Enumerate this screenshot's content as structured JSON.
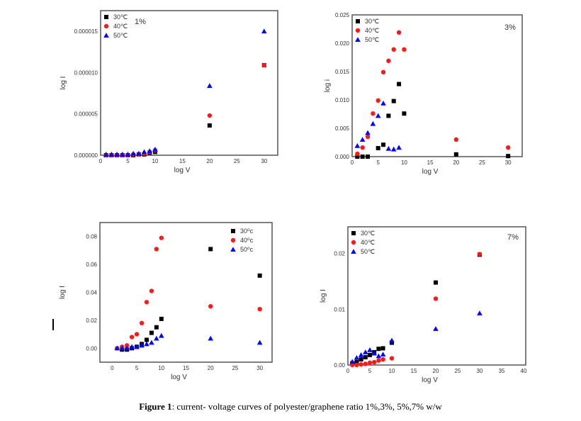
{
  "colors": {
    "30": "#000000",
    "40": "#ff1a1a",
    "50": "#0000ff"
  },
  "chart_data": [
    {
      "type": "scatter",
      "title": "1%",
      "xlabel": "log V",
      "ylabel": "log I",
      "xlim": [
        0,
        32.5
      ],
      "ylim": [
        0,
        1.75e-05
      ],
      "xticks": [
        "0",
        "5",
        "10",
        "15",
        "20",
        "25",
        "30"
      ],
      "xtick_values": [
        0,
        5,
        10,
        15,
        20,
        25,
        30
      ],
      "yticks": [
        "0.000000",
        "0.000005",
        "0.000010",
        "0.000015"
      ],
      "ytick_values": [
        0,
        5e-06,
        1e-05,
        1.5e-05
      ],
      "legend": "top-left",
      "series": [
        {
          "name": "30℃",
          "marker": "square",
          "x": [
            1,
            2,
            3,
            4,
            5,
            6,
            7,
            8,
            9,
            10,
            20,
            30
          ],
          "y": [
            0,
            0,
            0,
            0,
            0,
            0,
            1e-07,
            1e-07,
            3e-07,
            4e-07,
            3.6e-06,
            1.09e-05
          ]
        },
        {
          "name": "40℃",
          "marker": "circle",
          "x": [
            1,
            2,
            3,
            4,
            5,
            6,
            7,
            8,
            9,
            10,
            20,
            30
          ],
          "y": [
            0,
            0,
            0,
            0,
            0,
            1e-07,
            1e-07,
            2e-07,
            4e-07,
            6e-07,
            4.8e-06,
            1.09e-05
          ]
        },
        {
          "name": "50℃",
          "marker": "triangle",
          "x": [
            1,
            2,
            3,
            4,
            5,
            6,
            7,
            8,
            9,
            10,
            20,
            30
          ],
          "y": [
            1e-07,
            1e-07,
            1e-07,
            1e-07,
            1e-07,
            2e-07,
            2e-07,
            4e-07,
            5e-07,
            7e-07,
            8.4e-06,
            1.5e-05
          ]
        }
      ]
    },
    {
      "type": "scatter",
      "title": "3%",
      "xlabel": "log V",
      "ylabel": "log i",
      "xlim": [
        0,
        32.7
      ],
      "ylim": [
        0,
        0.025
      ],
      "xticks": [
        "0",
        "5",
        "10",
        "15",
        "20",
        "25",
        "30"
      ],
      "xtick_values": [
        0,
        5,
        10,
        15,
        20,
        25,
        30
      ],
      "yticks": [
        "0.000",
        "0.005",
        "0.010",
        "0.015",
        "0.020",
        "0.025"
      ],
      "ytick_values": [
        0,
        0.005,
        0.01,
        0.015,
        0.02,
        0.025
      ],
      "legend": "top-left",
      "series": [
        {
          "name": "30℃",
          "marker": "square",
          "x": [
            1,
            2,
            3,
            5,
            6,
            7,
            8,
            9,
            10,
            20,
            30
          ],
          "y": [
            0,
            0,
            0,
            0.0015,
            0.0021,
            0.0072,
            0.0098,
            0.0128,
            0.0076,
            0.0004,
            0.0001
          ]
        },
        {
          "name": "40℃",
          "marker": "circle",
          "x": [
            1,
            2,
            3,
            4,
            5,
            6,
            7,
            8,
            9,
            10,
            20,
            30
          ],
          "y": [
            0.0005,
            0.0016,
            0.0035,
            0.0076,
            0.0099,
            0.0149,
            0.0169,
            0.0189,
            0.0219,
            0.0189,
            0.003,
            0.0016
          ]
        },
        {
          "name": "50℃",
          "marker": "triangle",
          "x": [
            1,
            2,
            3,
            4,
            5,
            6,
            7,
            8,
            9
          ],
          "y": [
            0.0019,
            0.003,
            0.0042,
            0.0058,
            0.0072,
            0.0094,
            0.0014,
            0.0013,
            0.0016
          ]
        }
      ]
    },
    {
      "type": "scatter",
      "title": "",
      "xlabel": "log V",
      "ylabel": "log I",
      "xlim": [
        -2.5,
        32.5
      ],
      "ylim": [
        -0.01,
        0.09
      ],
      "xticks": [
        "0",
        "5",
        "10",
        "15",
        "20",
        "25",
        "30"
      ],
      "xtick_values": [
        0,
        5,
        10,
        15,
        20,
        25,
        30
      ],
      "yticks": [
        "0.00",
        "0.02",
        "0.04",
        "0.06",
        "0.08"
      ],
      "ytick_values": [
        0,
        0.02,
        0.04,
        0.06,
        0.08
      ],
      "legend": "top-right",
      "series": [
        {
          "name": "30⁰c",
          "marker": "square",
          "x": [
            2,
            3,
            4,
            5,
            6,
            7,
            8,
            9,
            10,
            20,
            30
          ],
          "y": [
            -0.001,
            -0.001,
            0,
            0.001,
            0.003,
            0.006,
            0.011,
            0.015,
            0.021,
            0.071,
            0.052
          ]
        },
        {
          "name": "40⁰c",
          "marker": "circle",
          "x": [
            1,
            2,
            3,
            4,
            5,
            6,
            7,
            8,
            9,
            10,
            20,
            30
          ],
          "y": [
            0,
            0.001,
            0.002,
            0.008,
            0.01,
            0.018,
            0.033,
            0.041,
            0.071,
            0.079,
            0.03,
            0.028
          ]
        },
        {
          "name": "50⁰c",
          "marker": "triangle",
          "x": [
            1,
            2,
            3,
            4,
            5,
            6,
            7,
            8,
            9,
            10,
            20,
            30
          ],
          "y": [
            0,
            0,
            0,
            0.001,
            0.001,
            0.002,
            0.003,
            0.004,
            0.007,
            0.009,
            0.007,
            0.004
          ]
        }
      ]
    },
    {
      "type": "scatter",
      "title": "7%",
      "xlabel": "log V",
      "ylabel": "log I",
      "xlim": [
        0,
        40.5
      ],
      "ylim": [
        0,
        0.0248
      ],
      "xticks": [
        "0",
        "5",
        "10",
        "15",
        "20",
        "25",
        "30",
        "35",
        "40"
      ],
      "xtick_values": [
        0,
        5,
        10,
        15,
        20,
        25,
        30,
        35,
        40
      ],
      "yticks": [
        "0.00",
        "0.01",
        "0.02"
      ],
      "ytick_values": [
        0,
        0.01,
        0.02
      ],
      "legend": "top-left",
      "series": [
        {
          "name": "30℃",
          "marker": "square",
          "x": [
            1,
            2,
            3,
            4,
            5,
            6,
            7,
            8,
            10,
            20,
            30
          ],
          "y": [
            0.0003,
            0.0005,
            0.001,
            0.0014,
            0.0018,
            0.0023,
            0.0029,
            0.003,
            0.004,
            0.0148,
            0.0198
          ]
        },
        {
          "name": "40℃",
          "marker": "circle",
          "x": [
            1,
            2,
            3,
            4,
            5,
            6,
            7,
            8,
            10,
            20,
            30
          ],
          "y": [
            0,
            0,
            0.0001,
            0.0002,
            0.0004,
            0.0005,
            0.0008,
            0.001,
            0.0012,
            0.0119,
            0.0199
          ]
        },
        {
          "name": "50℃",
          "marker": "triangle",
          "x": [
            1,
            2,
            3,
            4,
            5,
            6,
            7,
            8,
            10,
            20,
            30
          ],
          "y": [
            0.0006,
            0.0013,
            0.0018,
            0.0023,
            0.0027,
            0.0021,
            0.0016,
            0.0019,
            0.0044,
            0.0065,
            0.0093
          ]
        }
      ]
    }
  ],
  "caption": {
    "label": "Figure 1",
    "text": ": current- voltage curves of polyester/graphene ratio 1%,3%, 5%,7% w/w"
  }
}
